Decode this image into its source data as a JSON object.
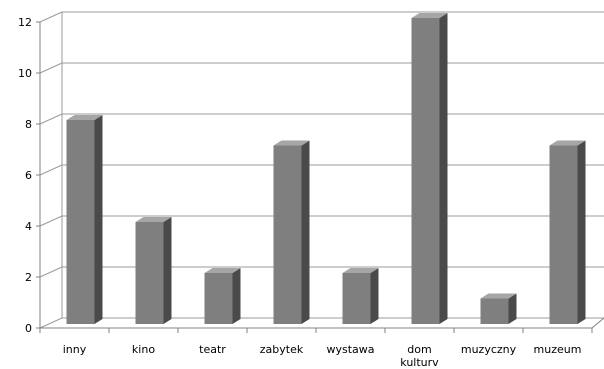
{
  "chart_data": {
    "type": "bar",
    "style": "3d-column",
    "categories": [
      "inny",
      "kino",
      "teatr",
      "zabytek",
      "wystawa",
      "dom kulturv",
      "muzyczny",
      "muzeum"
    ],
    "category_lines": [
      [
        "inny"
      ],
      [
        "kino"
      ],
      [
        "teatr"
      ],
      [
        "zabytek"
      ],
      [
        "wystawa"
      ],
      [
        "dom",
        "kulturv"
      ],
      [
        "muzyczny"
      ],
      [
        "muzeum"
      ]
    ],
    "values": [
      8,
      4,
      2,
      7,
      2,
      12,
      1,
      7
    ],
    "ylim": [
      0,
      12
    ],
    "yticks": [
      0,
      2,
      4,
      6,
      8,
      10,
      12
    ],
    "title": "",
    "xlabel": "",
    "ylabel": "",
    "grid": true,
    "legend": "none",
    "colors": {
      "bar_front": "#7f7f7f",
      "bar_side": "#4a4a4a",
      "bar_top": "#a6a6a6",
      "grid": "#9b9b9b",
      "axis": "#808080"
    }
  }
}
